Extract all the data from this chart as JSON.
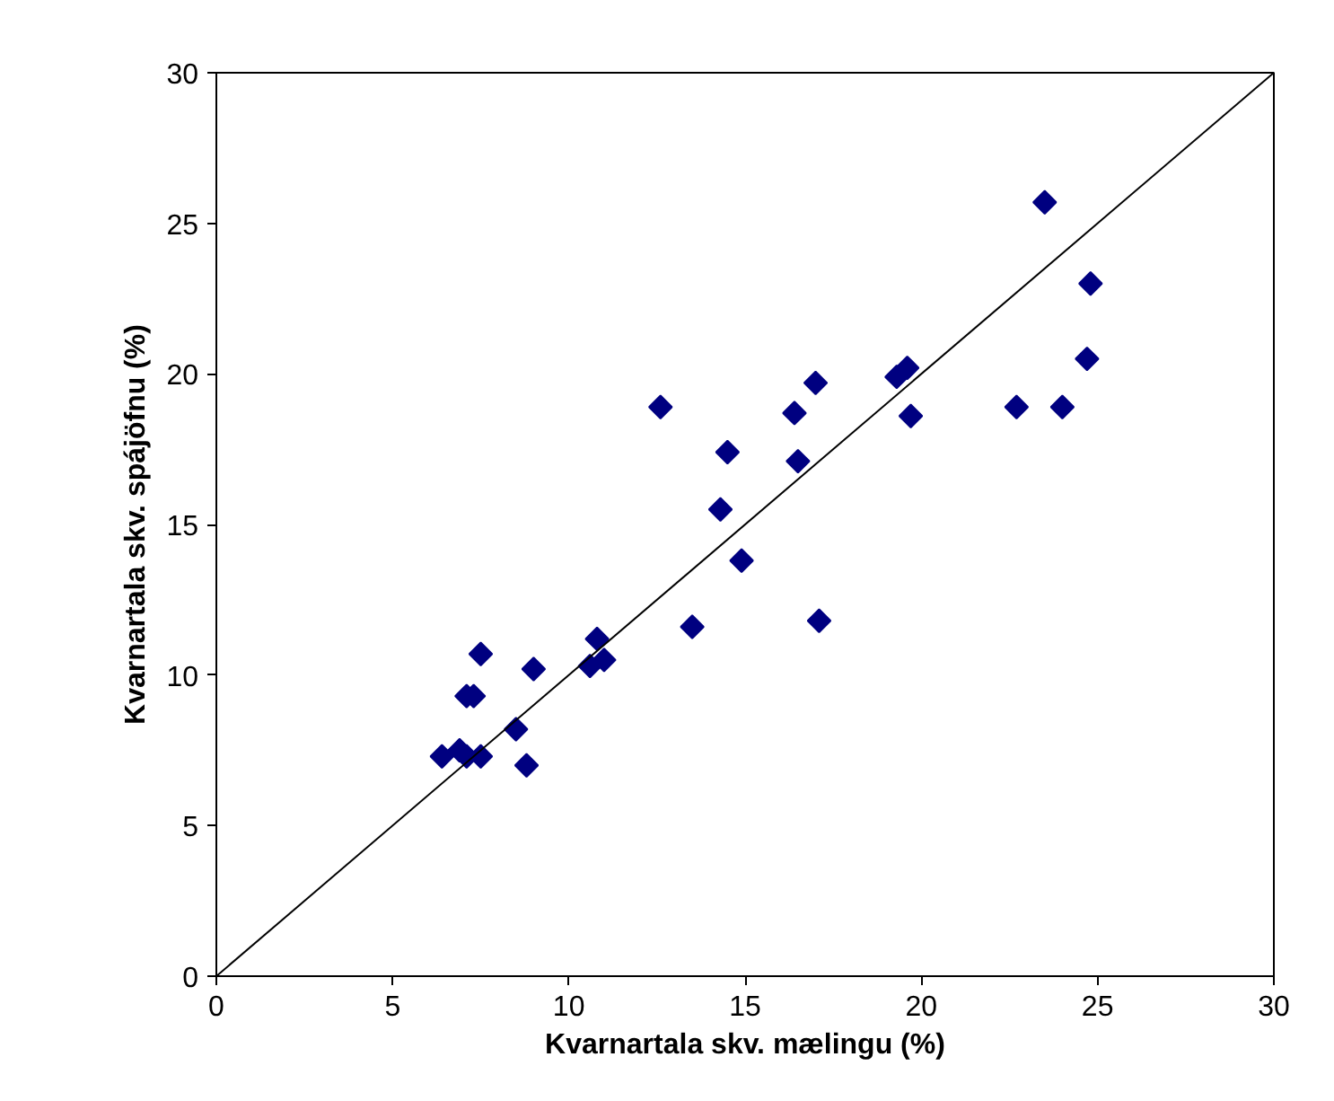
{
  "chart_data": {
    "type": "scatter",
    "xlabel": "Kvarnartala skv. mælingu (%)",
    "ylabel": "Kvarnartala skv. spájöfnu (%)",
    "xlim": [
      0,
      30
    ],
    "ylim": [
      0,
      30
    ],
    "xticks": [
      0,
      5,
      10,
      15,
      20,
      25,
      30
    ],
    "yticks": [
      0,
      5,
      10,
      15,
      20,
      25,
      30
    ],
    "grid": false,
    "series": [
      {
        "marker": "diamond",
        "color": "#000080",
        "x": [
          6.4,
          6.9,
          7.1,
          7.3,
          7.5,
          7.5,
          7.1,
          8.5,
          8.8,
          9.0,
          10.6,
          10.8,
          11.0,
          12.6,
          13.5,
          14.3,
          14.5,
          14.9,
          16.4,
          16.5,
          17.0,
          17.1,
          19.3,
          19.6,
          19.7,
          22.7,
          23.5,
          24.0,
          24.7,
          24.8
        ],
        "values": [
          7.3,
          7.5,
          7.3,
          9.3,
          7.3,
          10.7,
          9.3,
          8.2,
          7.0,
          10.2,
          10.3,
          11.2,
          10.5,
          18.9,
          11.6,
          15.5,
          17.4,
          13.8,
          18.7,
          17.1,
          19.7,
          11.8,
          19.9,
          20.2,
          18.6,
          18.9,
          25.7,
          18.9,
          20.5,
          23.0
        ]
      },
      {
        "type": "line",
        "marker": "none",
        "color": "#000000",
        "x": [
          0,
          30
        ],
        "values": [
          0,
          30
        ]
      }
    ]
  }
}
